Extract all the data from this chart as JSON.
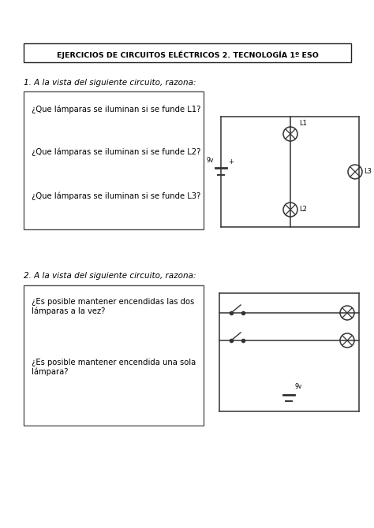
{
  "title": "EJERCICIOS DE CIRCUITOS ELÉCTRICOS 2. TECNOLOGÍA 1º ESO",
  "q1_label": "1. A la vista del siguiente circuito, razona:",
  "q1_box_questions": [
    "¿Que lámparas se iluminan si se funde L1?",
    "¿Que lámparas se iluminan si se funde L2?",
    "¿Que lámparas se iluminan si se funde L3?"
  ],
  "q2_label": "2. A la vista del siguiente circuito, razona:",
  "q2_box_questions": [
    "¿Es posible mantener encendidas las dos\nlámparas a la vez?",
    "¿Es posible mantener encendida una sola\nlámpara?"
  ],
  "bg_color": "#ffffff",
  "text_color": "#000000",
  "box_edge_color": "#555555",
  "circuit_color": "#333333"
}
